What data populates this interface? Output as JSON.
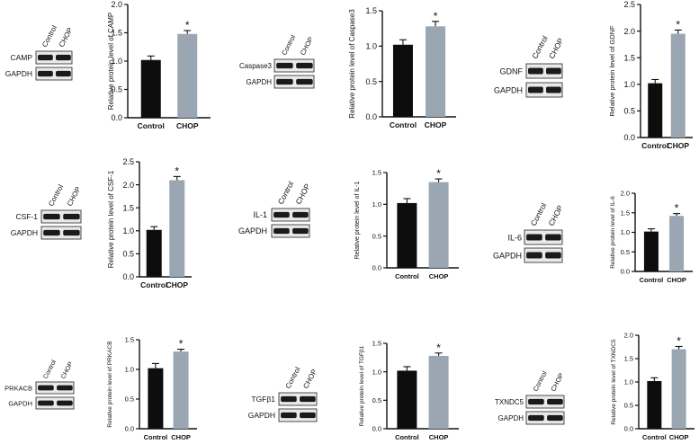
{
  "panels": [
    {
      "id": "camp",
      "protein": "CAMP",
      "lanes": [
        "Control",
        "CHOP"
      ],
      "loading": "GAPDH"
    },
    {
      "id": "caspase3",
      "protein": "Caspase3",
      "lanes": [
        "Control",
        "CHOP"
      ],
      "loading": "GAPDH"
    },
    {
      "id": "gdnf",
      "protein": "GDNF",
      "lanes": [
        "Control",
        "CHOP"
      ],
      "loading": "GAPDH"
    },
    {
      "id": "csf1",
      "protein": "CSF-1",
      "lanes": [
        "Control",
        "CHOP"
      ],
      "loading": "GAPDH"
    },
    {
      "id": "il1",
      "protein": "IL-1",
      "lanes": [
        "Control",
        "CHOP"
      ],
      "loading": "GAPDH"
    },
    {
      "id": "il6",
      "protein": "IL-6",
      "lanes": [
        "Control",
        "CHOP"
      ],
      "loading": "GAPDH"
    },
    {
      "id": "prkacb",
      "protein": "PRKACB",
      "lanes": [
        "Control",
        "CHOP"
      ],
      "loading": "GAPDH"
    },
    {
      "id": "tgfb1",
      "protein": "TGFβ1",
      "lanes": [
        "Control",
        "CHOP"
      ],
      "loading": "GAPDH"
    },
    {
      "id": "txndc5",
      "protein": "TXNDC5",
      "lanes": [
        "Control",
        "CHOP"
      ],
      "loading": "GAPDH"
    }
  ],
  "colors": {
    "control": "#0d0d0d",
    "chop": "#9aa6b2",
    "axis": "#111111"
  },
  "chart_data": [
    {
      "type": "bar",
      "panel": "camp",
      "categories": [
        "Control",
        "CHOP"
      ],
      "values": [
        1.02,
        1.48
      ],
      "errors": [
        0.07,
        0.06
      ],
      "significance": [
        "",
        "*"
      ],
      "ylabel": "Relative protein level of CAMP",
      "ylim": [
        0,
        2.0
      ],
      "yticks": [
        "0.0",
        "0.5",
        "1.0",
        "1.5",
        "2.0"
      ]
    },
    {
      "type": "bar",
      "panel": "caspase3",
      "categories": [
        "Control",
        "CHOP"
      ],
      "values": [
        1.02,
        1.28
      ],
      "errors": [
        0.07,
        0.07
      ],
      "significance": [
        "",
        "*"
      ],
      "ylabel": "Relative protein level of Caspase3",
      "ylim": [
        0,
        1.5
      ],
      "yticks": [
        "0.0",
        "0.5",
        "1.0",
        "1.5"
      ]
    },
    {
      "type": "bar",
      "panel": "gdnf",
      "categories": [
        "Control",
        "CHOP"
      ],
      "values": [
        1.02,
        1.95
      ],
      "errors": [
        0.07,
        0.07
      ],
      "significance": [
        "",
        "*"
      ],
      "ylabel": "Relative protein level of GDNF",
      "ylim": [
        0,
        2.5
      ],
      "yticks": [
        "0.0",
        "0.5",
        "1.0",
        "1.5",
        "2.0",
        "2.5"
      ]
    },
    {
      "type": "bar",
      "panel": "csf1",
      "categories": [
        "Control",
        "CHOP"
      ],
      "values": [
        1.02,
        2.1
      ],
      "errors": [
        0.07,
        0.08
      ],
      "significance": [
        "",
        "*"
      ],
      "ylabel": "Relative protein level of CSF-1",
      "ylim": [
        0,
        2.5
      ],
      "yticks": [
        "0.0",
        "0.5",
        "1.0",
        "1.5",
        "2.0",
        "2.5"
      ]
    },
    {
      "type": "bar",
      "panel": "il1",
      "categories": [
        "Control",
        "CHOP"
      ],
      "values": [
        1.02,
        1.35
      ],
      "errors": [
        0.07,
        0.05
      ],
      "significance": [
        "",
        "*"
      ],
      "ylabel": "Relative protein level of IL-1",
      "ylim": [
        0,
        1.5
      ],
      "yticks": [
        "0.0",
        "0.5",
        "1.0",
        "1.5"
      ]
    },
    {
      "type": "bar",
      "panel": "il6",
      "categories": [
        "Control",
        "CHOP"
      ],
      "values": [
        1.02,
        1.42
      ],
      "errors": [
        0.07,
        0.06
      ],
      "significance": [
        "",
        "*"
      ],
      "ylabel": "Relative protein level of IL-6",
      "ylim": [
        0,
        2.0
      ],
      "yticks": [
        "0.0",
        "0.5",
        "1.0",
        "1.5",
        "2.0"
      ]
    },
    {
      "type": "bar",
      "panel": "prkacb",
      "categories": [
        "Control",
        "CHOP"
      ],
      "values": [
        1.02,
        1.3
      ],
      "errors": [
        0.08,
        0.04
      ],
      "significance": [
        "",
        "*"
      ],
      "ylabel": "Relative protein level of PRKACB",
      "ylim": [
        0,
        1.5
      ],
      "yticks": [
        "0.0",
        "0.5",
        "1.0",
        "1.5"
      ]
    },
    {
      "type": "bar",
      "panel": "tgfb1",
      "categories": [
        "Control",
        "CHOP"
      ],
      "values": [
        1.02,
        1.28
      ],
      "errors": [
        0.07,
        0.05
      ],
      "significance": [
        "",
        "*"
      ],
      "ylabel": "Relative protein level of TGFβ1",
      "ylim": [
        0,
        1.5
      ],
      "yticks": [
        "0.0",
        "0.5",
        "1.0",
        "1.5"
      ]
    },
    {
      "type": "bar",
      "panel": "txndc5",
      "categories": [
        "Control",
        "CHOP"
      ],
      "values": [
        1.02,
        1.7
      ],
      "errors": [
        0.07,
        0.06
      ],
      "significance": [
        "",
        "*"
      ],
      "ylabel": "Relative protein level of TXNDC5",
      "ylim": [
        0,
        2.0
      ],
      "yticks": [
        "0.0",
        "0.5",
        "1.0",
        "1.5",
        "2.0"
      ]
    }
  ]
}
